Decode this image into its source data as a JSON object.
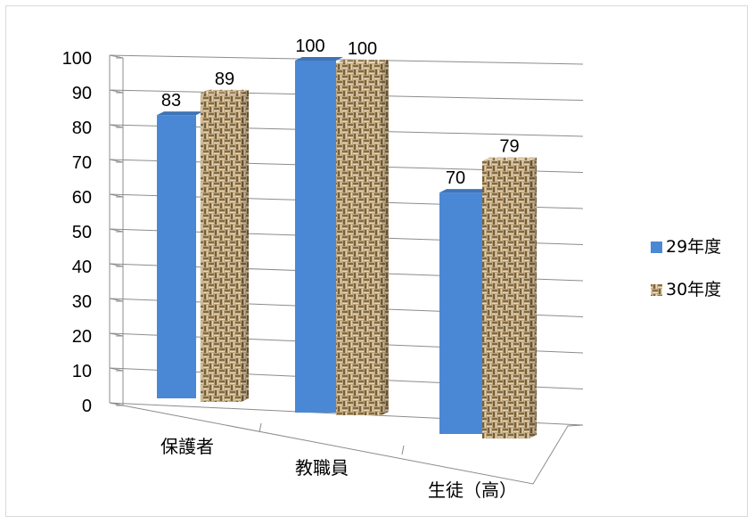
{
  "chart_data": {
    "type": "bar",
    "categories": [
      "保護者",
      "教職員",
      "生徒（高）"
    ],
    "series": [
      {
        "name": "29年度",
        "values": [
          83,
          100,
          70
        ],
        "color": "#4a88d6",
        "style": "solid"
      },
      {
        "name": "30年度",
        "values": [
          89,
          100,
          79
        ],
        "color": "#c9b287",
        "style": "woven-texture"
      }
    ],
    "y_ticks": [
      0,
      10,
      20,
      30,
      40,
      50,
      60,
      70,
      80,
      90,
      100
    ],
    "ylim": [
      0,
      100
    ],
    "grid": true,
    "legend_position": "right",
    "projection": "3d-perspective"
  }
}
